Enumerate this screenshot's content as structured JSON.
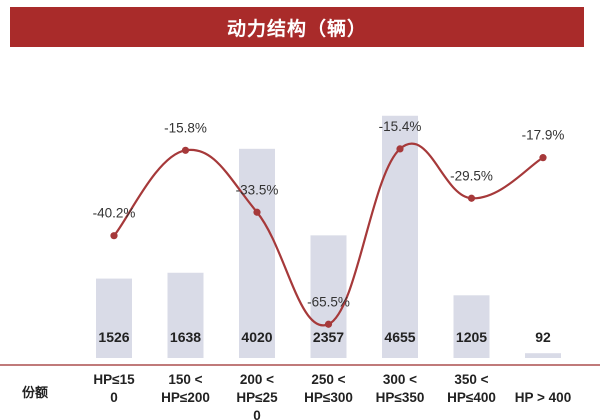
{
  "title": "动力结构（辆）",
  "row_label": "份额",
  "colors": {
    "bar": "#d9dbe7",
    "line": "#a6393a",
    "title_bg": "#a92b2a"
  },
  "chart_data": {
    "type": "bar",
    "categories": [
      [
        "HP≤15",
        "0"
      ],
      [
        "150 <",
        "HP≤200"
      ],
      [
        "200 <",
        "HP≤25",
        "0"
      ],
      [
        "250 <",
        "HP≤300"
      ],
      [
        "300 <",
        "HP≤350"
      ],
      [
        "350 <",
        "HP≤400"
      ],
      [
        "HP > 400"
      ]
    ],
    "series": [
      {
        "type": "bar",
        "values": [
          1526,
          1638,
          4020,
          2357,
          4655,
          1205,
          92
        ]
      },
      {
        "type": "line",
        "values": [
          -40.2,
          -15.8,
          -33.5,
          -65.5,
          -15.4,
          -29.5,
          -17.9
        ],
        "labels": [
          "-40.2%",
          "-15.8%",
          "-33.5%",
          "-65.5%",
          "-15.4%",
          "-29.5%",
          "-17.9%"
        ]
      }
    ],
    "bar_ylim": [
      0,
      4900
    ],
    "line_ylim": [
      -70,
      -10
    ]
  }
}
